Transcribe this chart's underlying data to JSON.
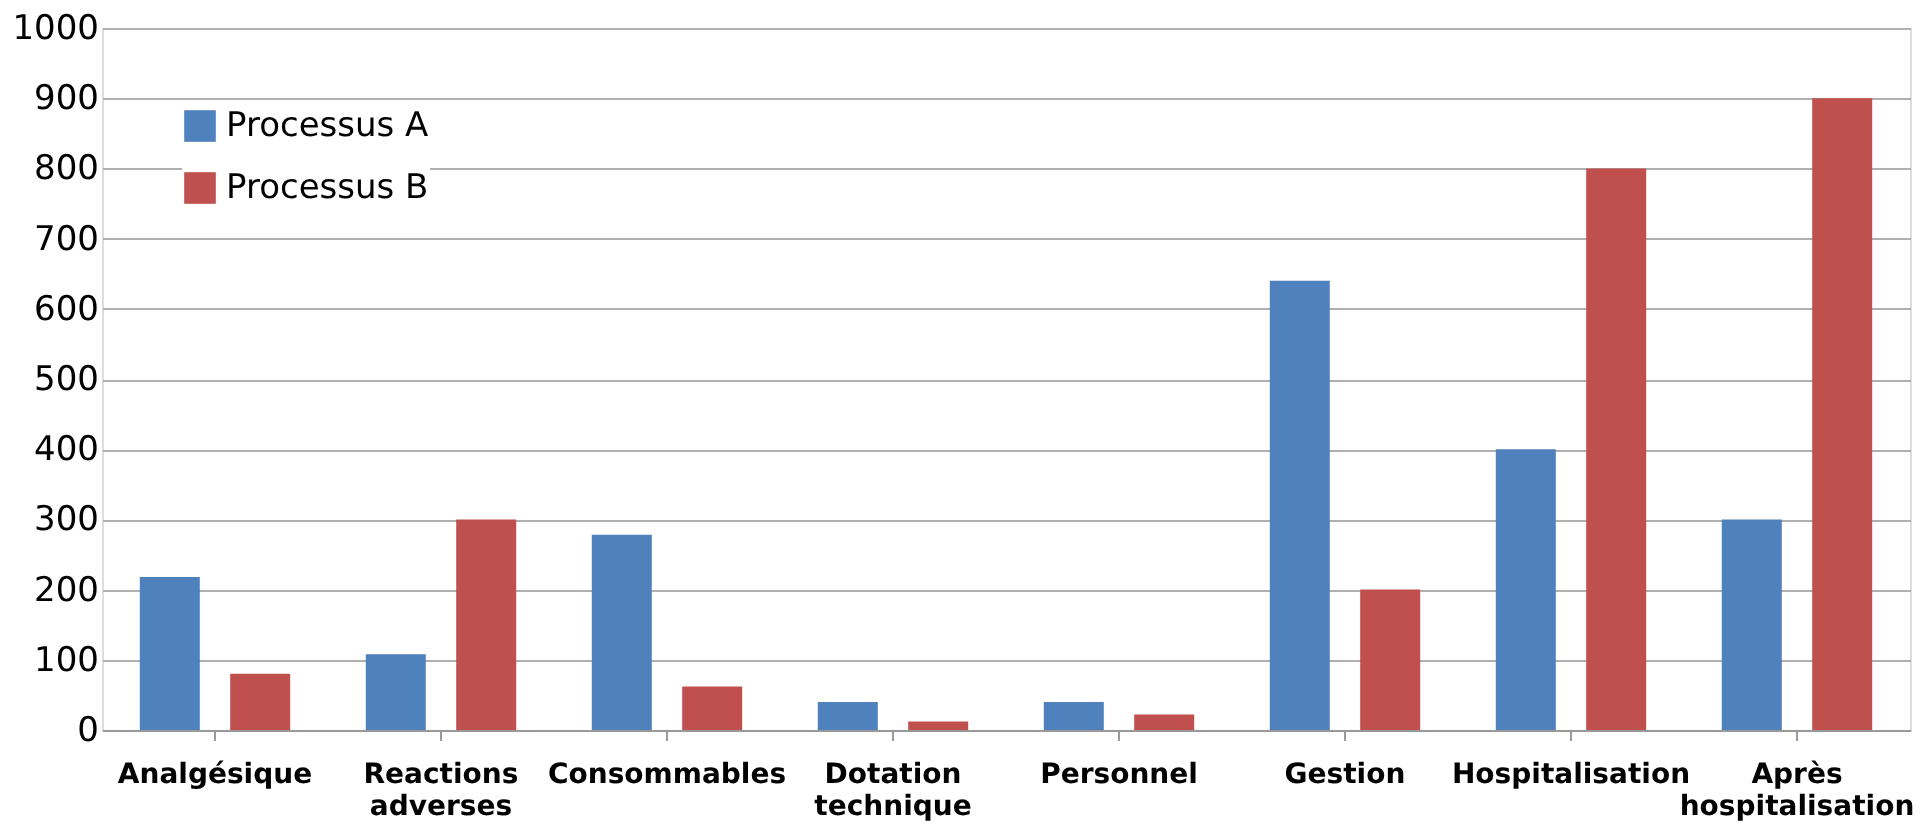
{
  "chart_data": {
    "type": "bar",
    "categories": [
      "Analgésique",
      "Reactions adverses",
      "Consommables",
      "Dotation technique",
      "Personnel",
      "Gestion",
      "Hospitalisation",
      "Après hospitalisation"
    ],
    "series": [
      {
        "name": "Processus A",
        "color": "#4f81bd",
        "values": [
          218,
          108,
          278,
          40,
          40,
          640,
          400,
          300
        ]
      },
      {
        "name": "Processus B",
        "color": "#c0504d",
        "values": [
          80,
          300,
          62,
          12,
          22,
          200,
          800,
          900
        ]
      }
    ],
    "ylim": [
      0,
      1000
    ],
    "yticks": [
      0,
      100,
      200,
      300,
      400,
      500,
      600,
      700,
      800,
      900,
      1000
    ],
    "grid": "y",
    "legend": "top left"
  }
}
